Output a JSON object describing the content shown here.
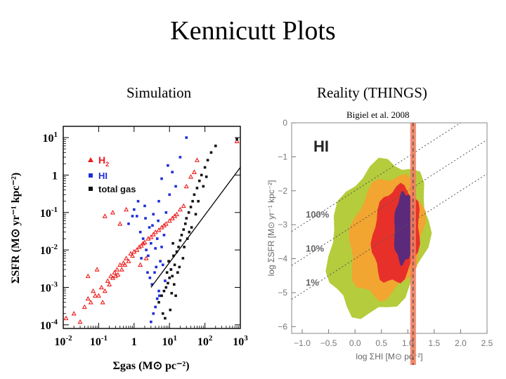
{
  "slide": {
    "title": "Kennicutt Plots",
    "left_caption": "Simulation",
    "right_caption": "Reality (THINGS)",
    "credit": "Bigiel et al. 2008"
  },
  "chart_data": [
    {
      "type": "scatter",
      "title": "Simulation",
      "xlabel": "Σgas (M⊙ pc⁻²)",
      "ylabel": "ΣSFR (M⊙ yr⁻¹ kpc⁻²)",
      "xscale": "log",
      "yscale": "log",
      "xlim": [
        0.01,
        1000
      ],
      "ylim": [
        8e-05,
        20
      ],
      "x_ticks": [
        {
          "value": 0.01,
          "base": "10",
          "exp": "-2"
        },
        {
          "value": 0.1,
          "base": "10",
          "exp": "-1"
        },
        {
          "value": 1,
          "base": "1",
          "exp": ""
        },
        {
          "value": 10,
          "base": "10",
          "exp": "1"
        },
        {
          "value": 100,
          "base": "10",
          "exp": "2"
        },
        {
          "value": 1000,
          "base": "10",
          "exp": "3"
        }
      ],
      "y_ticks": [
        {
          "value": 0.0001,
          "base": "10",
          "exp": "-4"
        },
        {
          "value": 0.001,
          "base": "10",
          "exp": "-3"
        },
        {
          "value": 0.01,
          "base": "10",
          "exp": "-2"
        },
        {
          "value": 0.1,
          "base": "10",
          "exp": "-1"
        },
        {
          "value": 1,
          "base": "1",
          "exp": ""
        },
        {
          "value": 10,
          "base": "10",
          "exp": "1"
        }
      ],
      "legend": {
        "placement": "upper-left",
        "items": [
          {
            "label": "H",
            "sub": "2",
            "marker": "triangle",
            "color": "#ee1c1c"
          },
          {
            "label": "HI",
            "sub": "",
            "marker": "square",
            "color": "#1e2fd6"
          },
          {
            "label": "total gas",
            "sub": "",
            "marker": "square",
            "color": "#111111"
          }
        ]
      },
      "series": [
        {
          "name": "H2",
          "marker": "triangle",
          "color": "#ee1c1c",
          "points": [
            [
              0.012,
              0.00015
            ],
            [
              0.02,
              0.0002
            ],
            [
              0.03,
              0.00012
            ],
            [
              0.04,
              0.0003
            ],
            [
              0.05,
              0.0005
            ],
            [
              0.06,
              0.0004
            ],
            [
              0.07,
              0.0008
            ],
            [
              0.08,
              0.0006
            ],
            [
              0.1,
              0.0006
            ],
            [
              0.12,
              0.001
            ],
            [
              0.13,
              0.0004
            ],
            [
              0.15,
              0.0008
            ],
            [
              0.18,
              0.0015
            ],
            [
              0.2,
              0.0012
            ],
            [
              0.22,
              0.002
            ],
            [
              0.25,
              0.0018
            ],
            [
              0.28,
              0.0025
            ],
            [
              0.3,
              0.002
            ],
            [
              0.33,
              0.003
            ],
            [
              0.35,
              0.0022
            ],
            [
              0.4,
              0.004
            ],
            [
              0.45,
              0.003
            ],
            [
              0.5,
              0.0045
            ],
            [
              0.55,
              0.004
            ],
            [
              0.6,
              0.006
            ],
            [
              0.7,
              0.005
            ],
            [
              0.8,
              0.008
            ],
            [
              0.9,
              0.007
            ],
            [
              1,
              0.009
            ],
            [
              1.2,
              0.01
            ],
            [
              1.4,
              0.012
            ],
            [
              1.6,
              0.013
            ],
            [
              1.8,
              0.015
            ],
            [
              2,
              0.016
            ],
            [
              2.5,
              0.02
            ],
            [
              3,
              0.022
            ],
            [
              3.5,
              0.026
            ],
            [
              4,
              0.03
            ],
            [
              5,
              0.034
            ],
            [
              6,
              0.04
            ],
            [
              7,
              0.045
            ],
            [
              8,
              0.05
            ],
            [
              10,
              0.06
            ],
            [
              12,
              0.07
            ],
            [
              14,
              0.08
            ],
            [
              16,
              0.09
            ],
            [
              20,
              0.12
            ],
            [
              25,
              0.15
            ],
            [
              0.15,
              0.08
            ],
            [
              0.25,
              0.1
            ],
            [
              0.4,
              0.05
            ],
            [
              0.6,
              0.12
            ],
            [
              1.5,
              0.004
            ],
            [
              2.2,
              0.006
            ],
            [
              0.05,
              0.002
            ],
            [
              0.09,
              0.003
            ],
            [
              30,
              0.5
            ],
            [
              40,
              0.9
            ],
            [
              50,
              1.2
            ],
            [
              60,
              2.5
            ],
            [
              800,
              8
            ]
          ]
        },
        {
          "name": "HI",
          "marker": "square",
          "color": "#1e2fd6",
          "points": [
            [
              3,
              0.00012
            ],
            [
              3.5,
              0.0002
            ],
            [
              4,
              0.0003
            ],
            [
              4.5,
              0.0005
            ],
            [
              5,
              0.0008
            ],
            [
              3.2,
              0.0012
            ],
            [
              2.8,
              0.0018
            ],
            [
              3.8,
              0.0025
            ],
            [
              4.2,
              0.0035
            ],
            [
              5.5,
              0.005
            ],
            [
              2.5,
              0.007
            ],
            [
              2.2,
              0.01
            ],
            [
              6,
              0.012
            ],
            [
              3,
              0.015
            ],
            [
              1.8,
              0.02
            ],
            [
              7,
              0.025
            ],
            [
              1.5,
              0.03
            ],
            [
              2.7,
              0.04
            ],
            [
              4.8,
              0.06
            ],
            [
              1.2,
              0.08
            ],
            [
              8,
              0.1
            ],
            [
              1,
              0.12
            ],
            [
              2,
              0.15
            ],
            [
              1.3,
              0.2
            ],
            [
              0.9,
              0.08
            ],
            [
              0.7,
              0.05
            ],
            [
              10,
              0.3
            ],
            [
              15,
              0.5
            ],
            [
              6,
              0.8
            ],
            [
              12,
              1.2
            ],
            [
              9,
              1.8
            ],
            [
              20,
              3
            ],
            [
              30,
              10
            ],
            [
              5,
              0.2
            ],
            [
              3.5,
              0.09
            ],
            [
              4.5,
              0.02
            ],
            [
              6.5,
              0.004
            ],
            [
              2.4,
              0.0025
            ],
            [
              1.6,
              0.006
            ],
            [
              7.5,
              0.0015
            ],
            [
              5.2,
              0.0006
            ],
            [
              4,
              0.011
            ],
            [
              3.3,
              0.045
            ],
            [
              2.1,
              0.07
            ],
            [
              11,
              0.003
            ]
          ]
        },
        {
          "name": "total gas",
          "marker": "square",
          "color": "#111111",
          "points": [
            [
              5,
              0.0004
            ],
            [
              6,
              0.0006
            ],
            [
              7,
              0.0008
            ],
            [
              8,
              0.001
            ],
            [
              9,
              0.0013
            ],
            [
              10,
              0.0018
            ],
            [
              12,
              0.002
            ],
            [
              8.5,
              0.0025
            ],
            [
              11,
              0.003
            ],
            [
              14,
              0.004
            ],
            [
              9.5,
              0.005
            ],
            [
              13,
              0.007
            ],
            [
              16,
              0.009
            ],
            [
              18,
              0.012
            ],
            [
              12.5,
              0.015
            ],
            [
              20,
              0.018
            ],
            [
              22,
              0.025
            ],
            [
              25,
              0.035
            ],
            [
              28,
              0.05
            ],
            [
              30,
              0.07
            ],
            [
              35,
              0.1
            ],
            [
              40,
              0.14
            ],
            [
              45,
              0.2
            ],
            [
              50,
              0.3
            ],
            [
              60,
              0.45
            ],
            [
              70,
              0.7
            ],
            [
              80,
              1.0
            ],
            [
              100,
              1.6
            ],
            [
              120,
              2.5
            ],
            [
              150,
              4
            ],
            [
              200,
              6
            ],
            [
              800,
              9
            ],
            [
              6.5,
              0.0002
            ],
            [
              7.5,
              0.00015
            ],
            [
              15,
              0.0006
            ],
            [
              10.5,
              0.00025
            ],
            [
              17,
              0.0025
            ],
            [
              24,
              0.006
            ],
            [
              32,
              0.02
            ],
            [
              42,
              0.04
            ],
            [
              55,
              0.09
            ],
            [
              26,
              0.012
            ],
            [
              19,
              0.0035
            ],
            [
              13.5,
              0.0012
            ],
            [
              11.5,
              0.0007
            ],
            [
              36,
              0.03
            ],
            [
              65,
              0.2
            ],
            [
              90,
              0.5
            ],
            [
              110,
              0.9
            ]
          ]
        }
      ],
      "fit_line": {
        "x": [
          3,
          1000
        ],
        "y": [
          0.001,
          1.6
        ]
      }
    },
    {
      "type": "heatmap",
      "title": "Reality (THINGS)",
      "panel_label": "HI",
      "xlabel": "log ΣHI [M⊙ pc⁻²]",
      "ylabel": "log ΣSFR [M⊙ yr⁻¹ kpc⁻²]",
      "xlim": [
        -1.2,
        2.5
      ],
      "ylim": [
        -6.2,
        0
      ],
      "x_ticks": [
        "−1.0",
        "−0.5",
        "0.0",
        "0.5",
        "1.0",
        "1.5",
        "2.0",
        "2.5"
      ],
      "x_tick_values": [
        -1.0,
        -0.5,
        0.0,
        0.5,
        1.0,
        1.5,
        2.0,
        2.5
      ],
      "y_ticks": [
        "0",
        "−1",
        "−2",
        "−3",
        "−4",
        "−5",
        "−6"
      ],
      "y_tick_values": [
        0,
        -1,
        -2,
        -3,
        -4,
        -5,
        -6
      ],
      "efficiency_lines": [
        {
          "label": "100%",
          "intercept": -2.0
        },
        {
          "label": "10%",
          "intercept": -3.0
        },
        {
          "label": "1%",
          "intercept": -4.0
        }
      ],
      "saturation_band": {
        "x": 1.1,
        "color": "#f08060"
      },
      "density_levels": [
        {
          "level": "low",
          "color": "#b5cc3c",
          "center": [
            0.45,
            -3.4
          ],
          "radius": [
            0.95,
            2.2
          ],
          "tilt": 1.6
        },
        {
          "level": "mid-low",
          "color": "#f2a530",
          "center": [
            0.6,
            -3.35
          ],
          "radius": [
            0.7,
            1.75
          ],
          "tilt": 1.6
        },
        {
          "level": "mid-high",
          "color": "#e8302a",
          "center": [
            0.78,
            -3.3
          ],
          "radius": [
            0.45,
            1.4
          ],
          "tilt": 1.6
        },
        {
          "level": "high",
          "color": "#5b2a7a",
          "center": [
            0.92,
            -3.1
          ],
          "radius": [
            0.18,
            1.05
          ],
          "tilt": 1.6
        }
      ]
    }
  ]
}
